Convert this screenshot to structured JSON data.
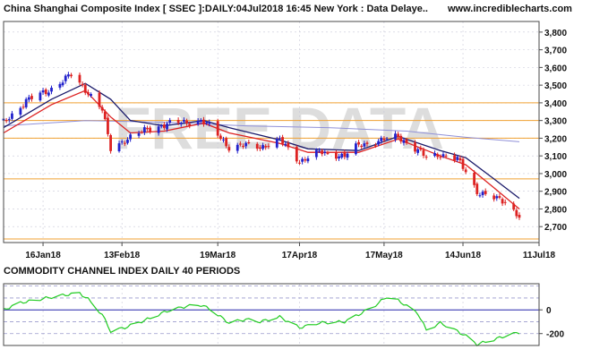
{
  "title": "China Shanghai Composite Index [ SSEC ]:DAILY:04Jul2018 16:45 New York : Data Delaye..",
  "site": "www.incrediblecharts.com",
  "watermark": "FREE DATA",
  "colors": {
    "frame": "#4a4a4a",
    "grid": "#c8c8d8",
    "support_lines": "#f0a030",
    "bull_candle": "#2222cc",
    "bear_candle": "#dd2222",
    "ma_fast": "#dd2222",
    "ma_mid": "#1a1a6a",
    "ma_slow": "#9090d8",
    "cci": "#22cc22",
    "cci_bands": "#9999cc",
    "cci_zero": "#2222aa",
    "watermark": "#dddddd"
  },
  "chart_data": [
    {
      "type": "candlestick",
      "title": "China Shanghai Composite Index [ SSEC ]:DAILY:04Jul2018 16:45 New York : Data Delaye..",
      "x_tick_labels": [
        "16Jan18",
        "13Feb18",
        "19Mar18",
        "17Apr18",
        "17May18",
        "14Jun18",
        "11Jul18"
      ],
      "x_tick_dates": [
        "2018-01-16",
        "2018-02-13",
        "2018-03-19",
        "2018-04-17",
        "2018-05-17",
        "2018-06-14",
        "2018-07-11"
      ],
      "x_range": [
        "2018-01-02",
        "2018-07-11"
      ],
      "y_tick_labels": [
        "2,700",
        "2,800",
        "2,900",
        "3,000",
        "3,100",
        "3,200",
        "3,300",
        "3,400",
        "3,500",
        "3,600",
        "3,700",
        "3,800"
      ],
      "y_ticks": [
        2700,
        2800,
        2900,
        3000,
        3100,
        3200,
        3300,
        3400,
        3500,
        3600,
        3700,
        3800
      ],
      "ylim": [
        2610,
        3860
      ],
      "grid": true,
      "horizontal_lines": [
        3400,
        3300,
        3200,
        2970,
        2630
      ],
      "ohlc_date_range": [
        "2018-01-02",
        "2018-07-04"
      ],
      "close_anchors": [
        [
          "2018-01-02",
          3290
        ],
        [
          "2018-01-10",
          3410
        ],
        [
          "2018-01-19",
          3480
        ],
        [
          "2018-01-26",
          3558
        ],
        [
          "2018-02-01",
          3460
        ],
        [
          "2018-02-06",
          3360
        ],
        [
          "2018-02-09",
          3140
        ],
        [
          "2018-02-14",
          3190
        ],
        [
          "2018-02-22",
          3250
        ],
        [
          "2018-03-01",
          3280
        ],
        [
          "2018-03-08",
          3290
        ],
        [
          "2018-03-13",
          3300
        ],
        [
          "2018-03-16",
          3270
        ],
        [
          "2018-03-23",
          3150
        ],
        [
          "2018-03-29",
          3160
        ],
        [
          "2018-04-03",
          3150
        ],
        [
          "2018-04-10",
          3190
        ],
        [
          "2018-04-17",
          3070
        ],
        [
          "2018-04-24",
          3120
        ],
        [
          "2018-05-03",
          3100
        ],
        [
          "2018-05-08",
          3160
        ],
        [
          "2018-05-14",
          3180
        ],
        [
          "2018-05-22",
          3210
        ],
        [
          "2018-05-29",
          3130
        ],
        [
          "2018-06-01",
          3090
        ],
        [
          "2018-06-06",
          3110
        ],
        [
          "2018-06-12",
          3080
        ],
        [
          "2018-06-15",
          3010
        ],
        [
          "2018-06-19",
          2900
        ],
        [
          "2018-06-25",
          2860
        ],
        [
          "2018-06-29",
          2840
        ],
        [
          "2018-07-04",
          2760
        ]
      ],
      "ma_fast_anchors": [
        [
          "2018-01-02",
          3230
        ],
        [
          "2018-01-19",
          3390
        ],
        [
          "2018-01-31",
          3470
        ],
        [
          "2018-02-09",
          3320
        ],
        [
          "2018-02-16",
          3230
        ],
        [
          "2018-02-28",
          3240
        ],
        [
          "2018-03-14",
          3285
        ],
        [
          "2018-03-23",
          3230
        ],
        [
          "2018-04-10",
          3170
        ],
        [
          "2018-04-20",
          3120
        ],
        [
          "2018-05-08",
          3120
        ],
        [
          "2018-05-22",
          3195
        ],
        [
          "2018-06-06",
          3100
        ],
        [
          "2018-06-15",
          3050
        ],
        [
          "2018-06-25",
          2920
        ],
        [
          "2018-07-04",
          2800
        ]
      ],
      "ma_mid_anchors": [
        [
          "2018-01-02",
          3260
        ],
        [
          "2018-01-19",
          3420
        ],
        [
          "2018-01-31",
          3510
        ],
        [
          "2018-02-09",
          3420
        ],
        [
          "2018-02-16",
          3300
        ],
        [
          "2018-02-28",
          3270
        ],
        [
          "2018-03-14",
          3300
        ],
        [
          "2018-03-23",
          3260
        ],
        [
          "2018-04-10",
          3190
        ],
        [
          "2018-04-20",
          3140
        ],
        [
          "2018-05-08",
          3130
        ],
        [
          "2018-05-22",
          3210
        ],
        [
          "2018-06-06",
          3130
        ],
        [
          "2018-06-15",
          3090
        ],
        [
          "2018-06-25",
          2970
        ],
        [
          "2018-07-04",
          2860
        ]
      ],
      "ma_slow_anchors": [
        [
          "2018-01-02",
          3270
        ],
        [
          "2018-01-31",
          3300
        ],
        [
          "2018-02-28",
          3290
        ],
        [
          "2018-03-29",
          3270
        ],
        [
          "2018-04-27",
          3260
        ],
        [
          "2018-05-25",
          3240
        ],
        [
          "2018-06-15",
          3205
        ],
        [
          "2018-07-04",
          3180
        ]
      ]
    },
    {
      "type": "line",
      "title": "COMMODITY CHANNEL INDEX DAILY 40 PERIODS",
      "series": [
        {
          "values": [
            [
              "2018-01-02",
              0
            ],
            [
              "2018-01-08",
              60
            ],
            [
              "2018-01-15",
              90
            ],
            [
              "2018-01-22",
              120
            ],
            [
              "2018-01-29",
              140
            ],
            [
              "2018-02-01",
              90
            ],
            [
              "2018-02-06",
              -40
            ],
            [
              "2018-02-09",
              -180
            ],
            [
              "2018-02-14",
              -150
            ],
            [
              "2018-02-22",
              -80
            ],
            [
              "2018-03-01",
              -10
            ],
            [
              "2018-03-08",
              30
            ],
            [
              "2018-03-13",
              40
            ],
            [
              "2018-03-16",
              10
            ],
            [
              "2018-03-23",
              -110
            ],
            [
              "2018-03-29",
              -80
            ],
            [
              "2018-04-03",
              -100
            ],
            [
              "2018-04-10",
              -60
            ],
            [
              "2018-04-17",
              -150
            ],
            [
              "2018-04-24",
              -110
            ],
            [
              "2018-05-03",
              -100
            ],
            [
              "2018-05-08",
              -40
            ],
            [
              "2018-05-14",
              40
            ],
            [
              "2018-05-18",
              110
            ],
            [
              "2018-05-22",
              80
            ],
            [
              "2018-05-29",
              -30
            ],
            [
              "2018-06-01",
              -170
            ],
            [
              "2018-06-06",
              -110
            ],
            [
              "2018-06-12",
              -180
            ],
            [
              "2018-06-15",
              -220
            ],
            [
              "2018-06-19",
              -290
            ],
            [
              "2018-06-25",
              -250
            ],
            [
              "2018-06-29",
              -220
            ],
            [
              "2018-07-04",
              -190
            ]
          ]
        }
      ],
      "y_tick_labels": [
        "0",
        "-200"
      ],
      "y_ticks": [
        0,
        -200
      ],
      "band_levels": [
        200,
        100,
        -100,
        -200
      ],
      "ylim": [
        -300,
        220
      ],
      "x_range": [
        "2018-01-02",
        "2018-07-11"
      ],
      "grid": true
    }
  ]
}
